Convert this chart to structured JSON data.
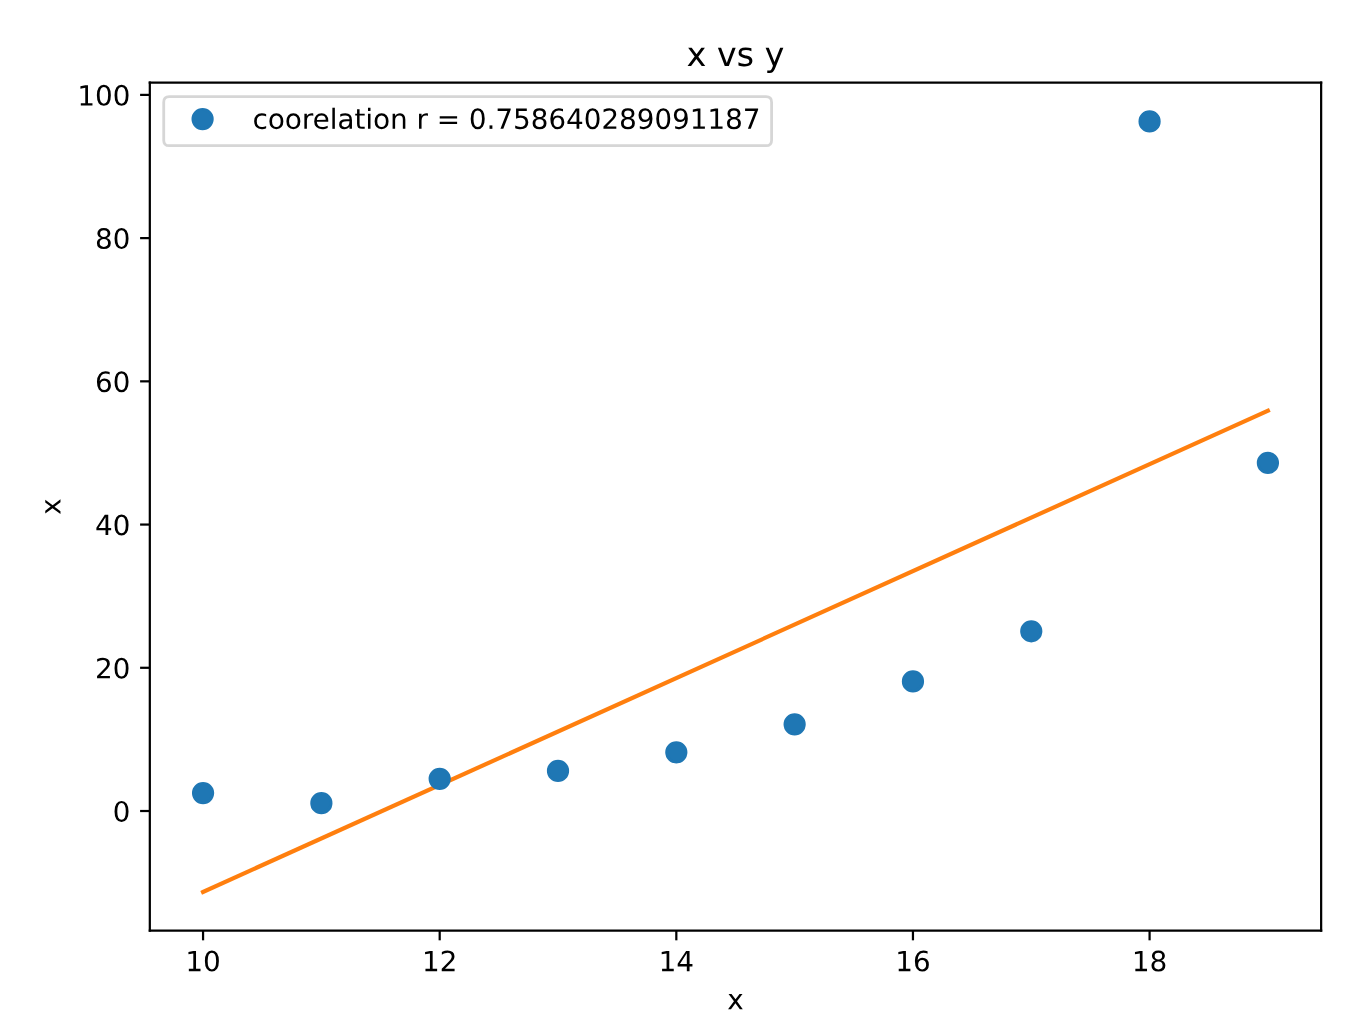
{
  "chart_data": {
    "type": "scatter",
    "title": "x vs y",
    "xlabel": "x",
    "ylabel": "x",
    "x": [
      10,
      11,
      12,
      13,
      14,
      15,
      16,
      17,
      18,
      19
    ],
    "series": [
      {
        "name": "coorelation r = 0.758640289091187",
        "marker": "circle",
        "color": "#1f77b4",
        "values": [
          2.5,
          1.1,
          4.5,
          5.6,
          8.2,
          12.1,
          18.1,
          25.1,
          96.3,
          48.6
        ]
      },
      {
        "type": "line",
        "color": "#ff7f0e",
        "x": [
          10,
          19
        ],
        "values": [
          -11.3,
          55.9
        ]
      }
    ],
    "xlim": [
      9.55,
      19.45
    ],
    "ylim": [
      -16.7,
      101.7
    ],
    "xticks": [
      10,
      12,
      14,
      16,
      18
    ],
    "yticks": [
      0,
      20,
      40,
      60,
      80,
      100
    ],
    "legend": "top left",
    "grid": false
  }
}
